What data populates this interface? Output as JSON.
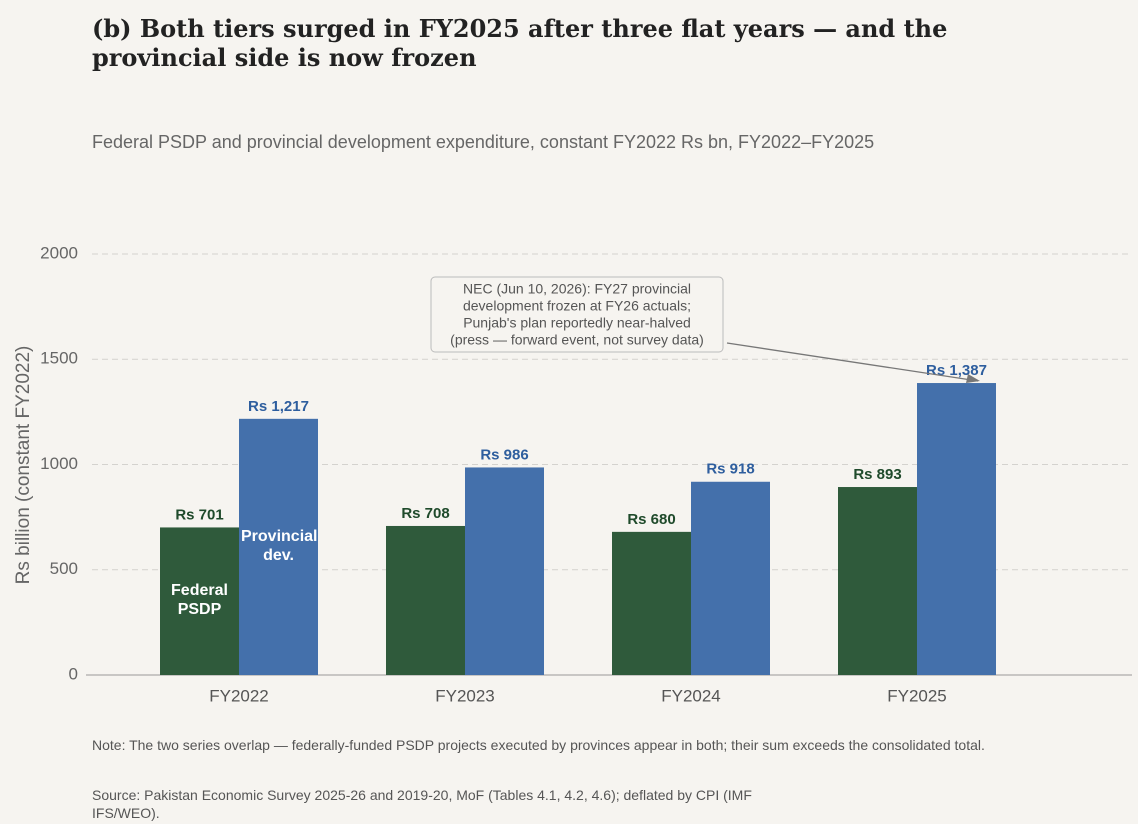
{
  "chart_data": {
    "type": "bar",
    "title": "(b)  Both tiers surged in FY2025 after three flat years — and the provincial side is now frozen",
    "subtitle": "Federal PSDP and provincial development expenditure, constant FY2022 Rs bn, FY2022–FY2025",
    "ylabel": "Rs billion (constant FY2022)",
    "categories": [
      "FY2022",
      "FY2023",
      "FY2024",
      "FY2025"
    ],
    "series": [
      {
        "name": "Federal PSDP",
        "color": "#2f5a3b",
        "label_color": "#1f4a2b",
        "values": [
          701,
          708,
          680,
          893
        ],
        "value_labels": [
          "Rs 701",
          "Rs 708",
          "Rs 680",
          "Rs 893"
        ]
      },
      {
        "name": "Provincial dev.",
        "color": "#4470ab",
        "label_color": "#2e5e9e",
        "values": [
          1217,
          986,
          918,
          1387
        ],
        "value_labels": [
          "Rs 1,217",
          "Rs 986",
          "Rs 918",
          "Rs 1,387"
        ]
      }
    ],
    "ylim": [
      0,
      2000
    ],
    "yticks": [
      0,
      500,
      1000,
      1500,
      2000
    ],
    "grid": true,
    "annotation": {
      "lines": [
        "NEC (Jun 10, 2026): FY27 provincial",
        "development frozen at FY26 actuals;",
        "Punjab's plan reportedly near-halved",
        "(press — forward event, not survey data)"
      ]
    },
    "note": "Note: The two series overlap — federally-funded PSDP projects executed by provinces appear in both; their sum exceeds the consolidated total.",
    "source": "Source: Pakistan Economic Survey 2025-26 and 2019-20, MoF (Tables 4.1, 4.2, 4.6); deflated by CPI (IMF IFS/WEO)."
  }
}
